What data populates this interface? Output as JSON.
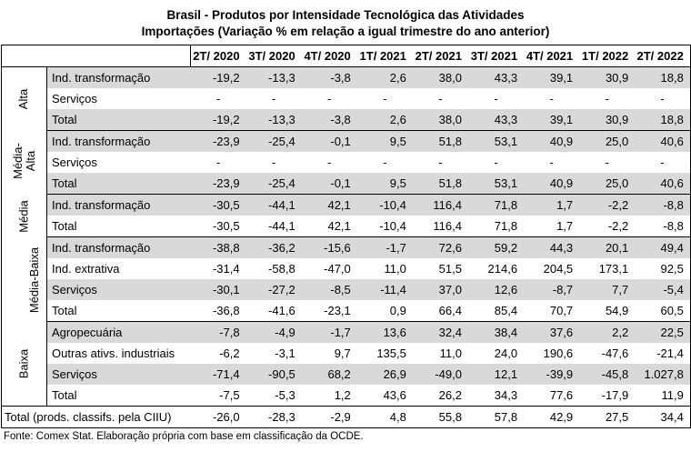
{
  "title": {
    "line1": "Brasil - Produtos por Intensidade Tecnológica das Atividades",
    "line2": "Importações (Variação % em relação a igual trimestre do ano anterior)"
  },
  "columns": [
    "2T/ 2020",
    "3T/ 2020",
    "4T/ 2020",
    "1T/ 2021",
    "2T/ 2021",
    "3T/ 2021",
    "4T/ 2021",
    "1T/ 2022",
    "2T/ 2022"
  ],
  "groups": [
    {
      "name": "Alta",
      "rows": [
        {
          "label": "Ind. transformação",
          "values": [
            "-19,2",
            "-13,3",
            "-3,8",
            "2,6",
            "38,0",
            "43,3",
            "39,1",
            "30,9",
            "18,8"
          ]
        },
        {
          "label": "Serviços",
          "values": [
            "-",
            "-",
            "-",
            "-",
            "-",
            "-",
            "-",
            "-",
            "-"
          ]
        },
        {
          "label": "Total",
          "values": [
            "-19,2",
            "-13,3",
            "-3,8",
            "2,6",
            "38,0",
            "43,3",
            "39,1",
            "30,9",
            "18,8"
          ]
        }
      ]
    },
    {
      "name": "Média-\nAlta",
      "rows": [
        {
          "label": "Ind. transformação",
          "values": [
            "-23,9",
            "-25,4",
            "-0,1",
            "9,5",
            "51,8",
            "53,1",
            "40,9",
            "25,0",
            "40,6"
          ]
        },
        {
          "label": "Serviços",
          "values": [
            "-",
            "-",
            "-",
            "-",
            "-",
            "-",
            "-",
            "-",
            "-"
          ]
        },
        {
          "label": "Total",
          "values": [
            "-23,9",
            "-25,4",
            "-0,1",
            "9,5",
            "51,8",
            "53,1",
            "40,9",
            "25,0",
            "40,6"
          ]
        }
      ]
    },
    {
      "name": "Média",
      "rows": [
        {
          "label": "Ind. transformação",
          "values": [
            "-30,5",
            "-44,1",
            "42,1",
            "-10,4",
            "116,4",
            "71,8",
            "1,7",
            "-2,2",
            "-8,8"
          ]
        },
        {
          "label": "Total",
          "values": [
            "-30,5",
            "-44,1",
            "42,1",
            "-10,4",
            "116,4",
            "71,8",
            "1,7",
            "-2,2",
            "-8,8"
          ]
        }
      ]
    },
    {
      "name": "Média-Baixa",
      "rows": [
        {
          "label": "Ind. transformação",
          "values": [
            "-38,8",
            "-36,2",
            "-15,6",
            "-1,7",
            "72,6",
            "59,2",
            "44,3",
            "20,1",
            "49,4"
          ]
        },
        {
          "label": "Ind. extrativa",
          "values": [
            "-31,4",
            "-58,8",
            "-47,0",
            "11,0",
            "51,5",
            "214,6",
            "204,5",
            "173,1",
            "92,5"
          ]
        },
        {
          "label": "Serviços",
          "values": [
            "-30,1",
            "-27,2",
            "-8,5",
            "-11,4",
            "37,0",
            "12,6",
            "-8,7",
            "7,7",
            "-5,4"
          ]
        },
        {
          "label": "Total",
          "values": [
            "-36,8",
            "-41,6",
            "-23,1",
            "0,9",
            "66,4",
            "85,4",
            "70,7",
            "54,9",
            "60,5"
          ]
        }
      ]
    },
    {
      "name": "Baixa",
      "rows": [
        {
          "label": "Agropecuária",
          "values": [
            "-7,8",
            "-4,9",
            "-1,7",
            "13,6",
            "32,4",
            "38,4",
            "37,6",
            "2,2",
            "22,5"
          ]
        },
        {
          "label": "Outras ativs. industriais",
          "values": [
            "-6,2",
            "-3,1",
            "9,7",
            "135,5",
            "11,0",
            "24,0",
            "190,6",
            "-47,6",
            "-21,4"
          ]
        },
        {
          "label": "Serviços",
          "values": [
            "-71,4",
            "-90,5",
            "68,2",
            "26,9",
            "-49,0",
            "12,1",
            "-39,9",
            "-45,8",
            "1.027,8"
          ]
        },
        {
          "label": "Total",
          "values": [
            "-7,5",
            "-5,3",
            "1,2",
            "43,6",
            "26,2",
            "34,3",
            "77,6",
            "-17,9",
            "11,9"
          ]
        }
      ]
    }
  ],
  "grand_total": {
    "label": "Total (prods. classifs. pela CIIU)",
    "values": [
      "-26,0",
      "-28,3",
      "-2,9",
      "4,8",
      "55,8",
      "57,8",
      "42,9",
      "27,5",
      "34,4"
    ]
  },
  "source": "Fonte: Comex Stat. Elaboração própria com base em classificação da OCDE."
}
